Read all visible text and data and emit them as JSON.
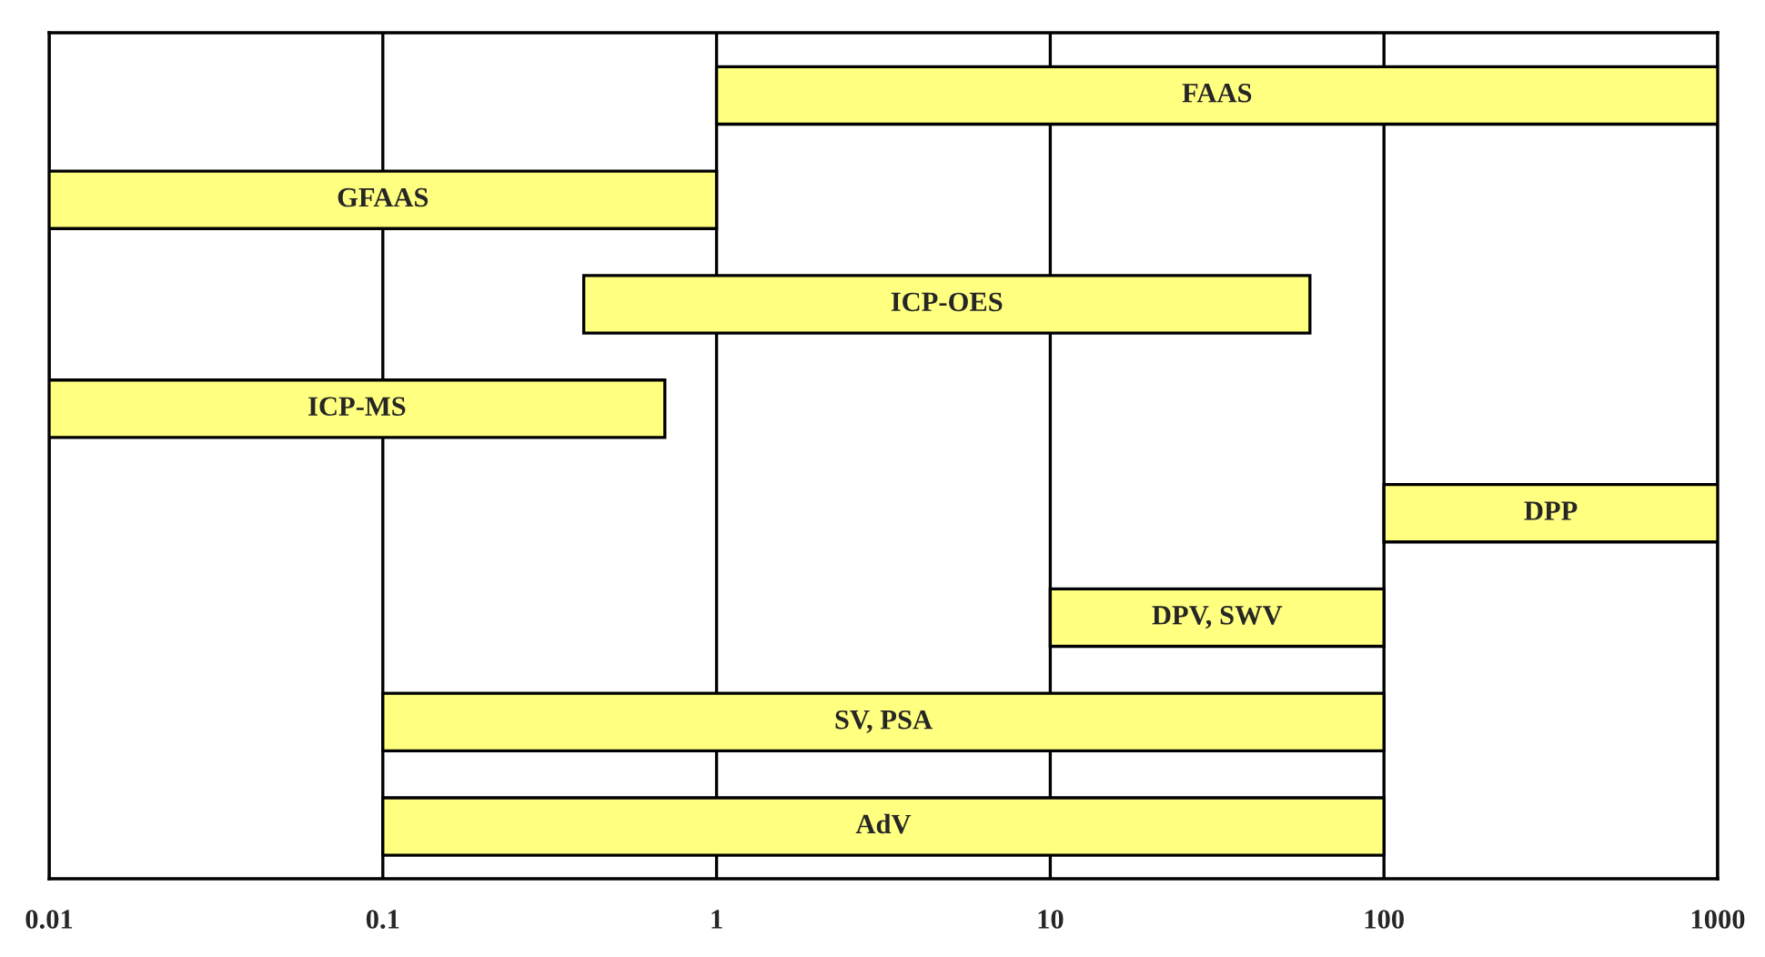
{
  "chart_data": {
    "type": "bar",
    "orientation": "horizontal",
    "categories": [
      "FAAS",
      "GFAAS",
      "ICP-OES",
      "ICP-MS",
      "DPP",
      "DPV, SWV",
      "SV, PSA",
      "AdV"
    ],
    "base": [
      1,
      0.01,
      0.4,
      0.01,
      100,
      10,
      0.1,
      0.1
    ],
    "values": [
      999,
      0.99,
      59.6,
      0.69,
      900,
      90,
      99.9,
      99.9
    ],
    "color": "#ffff80",
    "log": "x",
    "xlim": [
      0.01,
      1000
    ],
    "xticks": [
      0.01,
      0.1,
      1,
      10,
      100,
      1000
    ],
    "grid": "x"
  }
}
